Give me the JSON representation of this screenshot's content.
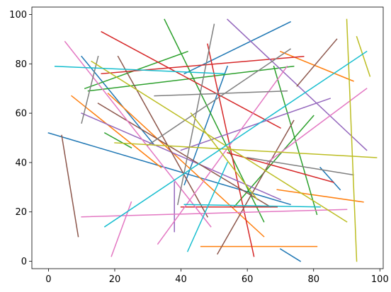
{
  "chart_data": {
    "type": "line",
    "title": "",
    "xlabel": "",
    "ylabel": "",
    "xlim": [
      -5,
      101
    ],
    "ylim": [
      -3,
      103
    ],
    "grid": false,
    "legend": "none",
    "x_ticks": [
      0,
      20,
      40,
      60,
      80,
      100
    ],
    "y_ticks": [
      0,
      20,
      40,
      60,
      80,
      100
    ],
    "x_tick_labels": [
      "0",
      "20",
      "40",
      "60",
      "80",
      "100"
    ],
    "y_tick_labels": [
      "0",
      "20",
      "40",
      "60",
      "80",
      "100"
    ],
    "series": [
      {
        "color": "#1f77b4",
        "x": [
          0,
          73
        ],
        "y": [
          52,
          23
        ]
      },
      {
        "color": "#1f77b4",
        "x": [
          10,
          32
        ],
        "y": [
          83,
          47
        ]
      },
      {
        "color": "#1f77b4",
        "x": [
          41,
          73
        ],
        "y": [
          76,
          97
        ]
      },
      {
        "color": "#1f77b4",
        "x": [
          82,
          88
        ],
        "y": [
          38,
          29
        ]
      },
      {
        "color": "#1f77b4",
        "x": [
          70,
          76
        ],
        "y": [
          5,
          0
        ]
      },
      {
        "color": "#1f77b4",
        "x": [
          41,
          54
        ],
        "y": [
          31,
          79
        ]
      },
      {
        "color": "#ff7f0e",
        "x": [
          7,
          34
        ],
        "y": [
          67,
          38
        ]
      },
      {
        "color": "#ff7f0e",
        "x": [
          69,
          95
        ],
        "y": [
          29,
          24
        ]
      },
      {
        "color": "#ff7f0e",
        "x": [
          46,
          81
        ],
        "y": [
          6,
          6
        ]
      },
      {
        "color": "#ff7f0e",
        "x": [
          70,
          92
        ],
        "y": [
          85,
          73
        ]
      },
      {
        "color": "#ff7f0e",
        "x": [
          18,
          65
        ],
        "y": [
          68,
          10
        ]
      },
      {
        "color": "#2ca02c",
        "x": [
          12,
          74
        ],
        "y": [
          69,
          79
        ]
      },
      {
        "color": "#2ca02c",
        "x": [
          35,
          65
        ],
        "y": [
          98,
          16
        ]
      },
      {
        "color": "#2ca02c",
        "x": [
          11,
          42
        ],
        "y": [
          70,
          85
        ]
      },
      {
        "color": "#2ca02c",
        "x": [
          17,
          25
        ],
        "y": [
          52,
          46
        ]
      },
      {
        "color": "#2ca02c",
        "x": [
          56,
          80
        ],
        "y": [
          22,
          59
        ]
      },
      {
        "color": "#2ca02c",
        "x": [
          68,
          81
        ],
        "y": [
          79,
          19
        ]
      },
      {
        "color": "#d62728",
        "x": [
          16,
          70
        ],
        "y": [
          93,
          54
        ]
      },
      {
        "color": "#d62728",
        "x": [
          40,
          69
        ],
        "y": [
          22,
          22
        ]
      },
      {
        "color": "#d62728",
        "x": [
          48,
          62
        ],
        "y": [
          88,
          2
        ]
      },
      {
        "color": "#d62728",
        "x": [
          54,
          86
        ],
        "y": [
          44,
          32
        ]
      },
      {
        "color": "#d62728",
        "x": [
          16,
          77
        ],
        "y": [
          76,
          83
        ]
      },
      {
        "color": "#9467bd",
        "x": [
          54,
          96
        ],
        "y": [
          98,
          45
        ]
      },
      {
        "color": "#9467bd",
        "x": [
          40,
          85
        ],
        "y": [
          45,
          66
        ]
      },
      {
        "color": "#9467bd",
        "x": [
          10,
          70
        ],
        "y": [
          60,
          25
        ]
      },
      {
        "color": "#9467bd",
        "x": [
          38,
          38
        ],
        "y": [
          32,
          12
        ]
      },
      {
        "color": "#8c564b",
        "x": [
          4,
          9
        ],
        "y": [
          51,
          10
        ]
      },
      {
        "color": "#8c564b",
        "x": [
          21,
          48
        ],
        "y": [
          83,
          18
        ]
      },
      {
        "color": "#8c564b",
        "x": [
          15,
          67
        ],
        "y": [
          64,
          22
        ]
      },
      {
        "color": "#8c564b",
        "x": [
          51,
          74
        ],
        "y": [
          3,
          57
        ]
      },
      {
        "color": "#8c564b",
        "x": [
          75,
          87
        ],
        "y": [
          71,
          90
        ]
      },
      {
        "color": "#e377c2",
        "x": [
          5,
          49
        ],
        "y": [
          89,
          14
        ]
      },
      {
        "color": "#e377c2",
        "x": [
          10,
          90
        ],
        "y": [
          18,
          21
        ]
      },
      {
        "color": "#e377c2",
        "x": [
          33,
          72
        ],
        "y": [
          7,
          79
        ]
      },
      {
        "color": "#e377c2",
        "x": [
          19,
          25
        ],
        "y": [
          2,
          24
        ]
      },
      {
        "color": "#e377c2",
        "x": [
          66,
          96
        ],
        "y": [
          40,
          70
        ]
      },
      {
        "color": "#7f7f7f",
        "x": [
          32,
          72
        ],
        "y": [
          67,
          69
        ]
      },
      {
        "color": "#7f7f7f",
        "x": [
          39,
          50
        ],
        "y": [
          23,
          96
        ]
      },
      {
        "color": "#7f7f7f",
        "x": [
          30,
          73
        ],
        "y": [
          47,
          86
        ]
      },
      {
        "color": "#7f7f7f",
        "x": [
          10,
          15
        ],
        "y": [
          56,
          83
        ]
      },
      {
        "color": "#7f7f7f",
        "x": [
          60,
          92
        ],
        "y": [
          42,
          35
        ]
      },
      {
        "color": "#bcbd22",
        "x": [
          13,
          90
        ],
        "y": [
          81,
          16
        ]
      },
      {
        "color": "#bcbd22",
        "x": [
          20,
          99
        ],
        "y": [
          48,
          42
        ]
      },
      {
        "color": "#bcbd22",
        "x": [
          90,
          93
        ],
        "y": [
          98,
          0
        ]
      },
      {
        "color": "#bcbd22",
        "x": [
          93,
          97
        ],
        "y": [
          91,
          75
        ]
      },
      {
        "color": "#bcbd22",
        "x": [
          43,
          63
        ],
        "y": [
          60,
          25
        ]
      },
      {
        "color": "#17becf",
        "x": [
          2,
          53
        ],
        "y": [
          79,
          76
        ]
      },
      {
        "color": "#17becf",
        "x": [
          17,
          96
        ],
        "y": [
          14,
          85
        ]
      },
      {
        "color": "#17becf",
        "x": [
          41,
          82
        ],
        "y": [
          23,
          22
        ]
      },
      {
        "color": "#17becf",
        "x": [
          42,
          54
        ],
        "y": [
          4,
          40
        ]
      }
    ]
  }
}
